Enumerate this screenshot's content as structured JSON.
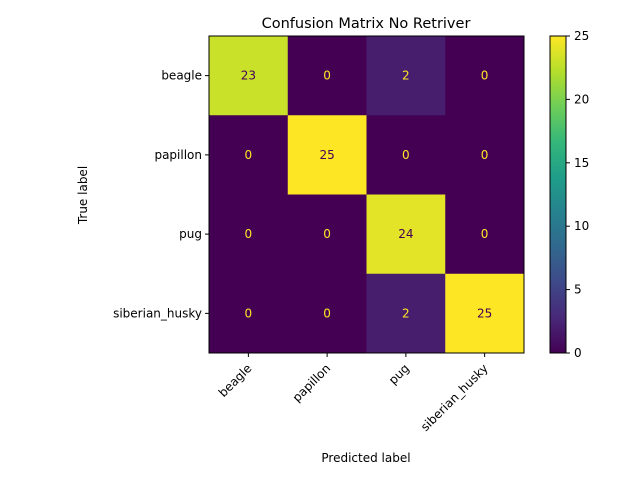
{
  "chart_data": {
    "type": "heatmap",
    "title": "Confusion Matrix No Retriver",
    "xlabel": "Predicted label",
    "ylabel": "True label",
    "x_categories": [
      "beagle",
      "papillon",
      "pug",
      "siberian_husky"
    ],
    "y_categories": [
      "beagle",
      "papillon",
      "pug",
      "siberian_husky"
    ],
    "matrix": [
      [
        23,
        0,
        2,
        0
      ],
      [
        0,
        25,
        0,
        0
      ],
      [
        0,
        0,
        24,
        0
      ],
      [
        0,
        0,
        2,
        25
      ]
    ],
    "colormap": "viridis",
    "vmin": 0,
    "vmax": 25,
    "colorbar_ticks": [
      0,
      5,
      10,
      15,
      20,
      25
    ],
    "text_color_low": "#fde725",
    "text_color_high": "#440154"
  }
}
